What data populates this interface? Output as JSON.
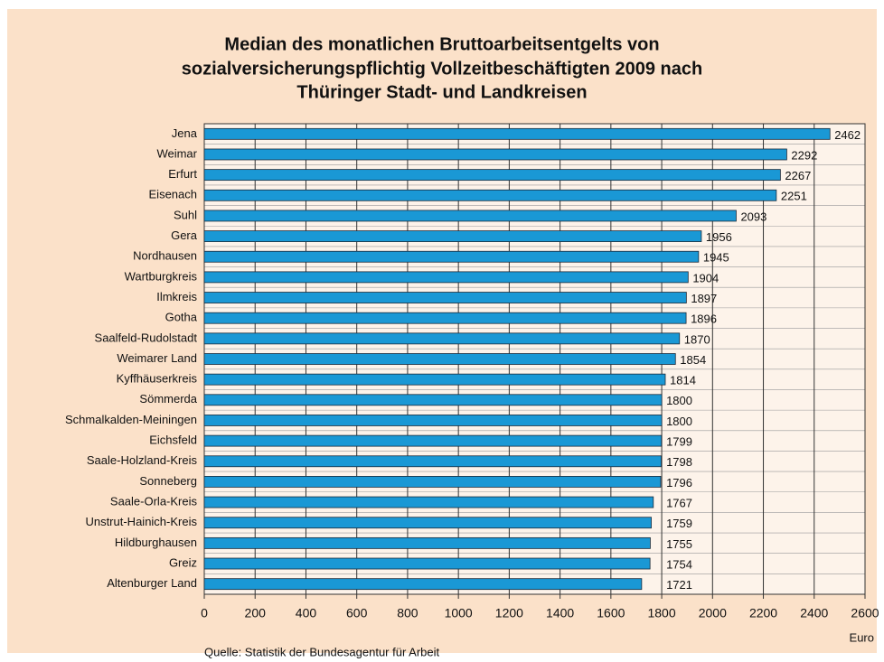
{
  "chart_data": {
    "type": "barh",
    "title": [
      "Median des monatlichen Bruttoarbeitsentgelts von",
      "sozialversicherungspflichtig Vollzeitbeschäftigten 2009 nach",
      "Thüringer Stadt- und Landkreisen"
    ],
    "categories": [
      "Jena",
      "Weimar",
      "Erfurt",
      "Eisenach",
      "Suhl",
      "Gera",
      "Nordhausen",
      "Wartburgkreis",
      "Ilmkreis",
      "Gotha",
      "Saalfeld-Rudolstadt",
      "Weimarer Land",
      "Kyffhäuserkreis",
      "Sömmerda",
      "Schmalkalden-Meiningen",
      "Eichsfeld",
      "Saale-Holzland-Kreis",
      "Sonneberg",
      "Saale-Orla-Kreis",
      "Unstrut-Hainich-Kreis",
      "Hildburghausen",
      "Greiz",
      "Altenburger Land"
    ],
    "values": [
      2462,
      2292,
      2267,
      2251,
      2093,
      1956,
      1945,
      1904,
      1897,
      1896,
      1870,
      1854,
      1814,
      1800,
      1800,
      1799,
      1798,
      1796,
      1767,
      1759,
      1755,
      1754,
      1721
    ],
    "color": "#1a98d5",
    "xlim": [
      0,
      2600
    ],
    "xticks": [
      0,
      200,
      400,
      600,
      800,
      1000,
      1200,
      1400,
      1600,
      1800,
      2000,
      2200,
      2400,
      2600
    ],
    "xlabel": "Euro",
    "source": "Quelle: Statistik der Bundesagentur für Arbeit",
    "grid": true
  }
}
